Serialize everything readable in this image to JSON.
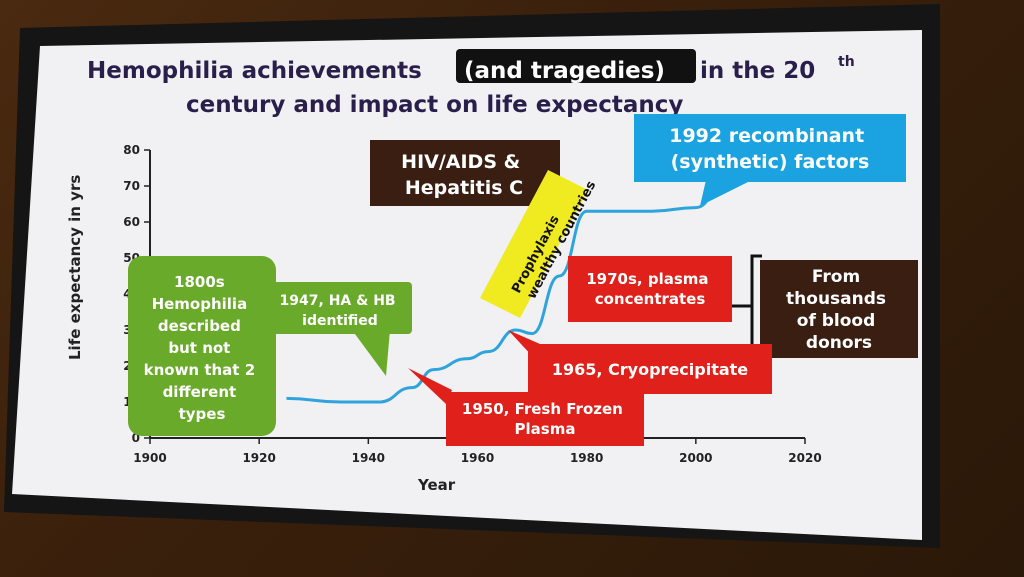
{
  "slide": {
    "title_part1": "Hemophilia achievements",
    "title_highlight": "(and tragedies)",
    "title_part2": "in the 20",
    "title_sup": "th",
    "title_line2": "century and impact on life expectancy"
  },
  "chart_data": {
    "type": "line",
    "xlabel": "Year",
    "ylabel": "Life expectancy in yrs",
    "xlim": [
      1900,
      2020
    ],
    "ylim": [
      0,
      80
    ],
    "xticks": [
      1900,
      1920,
      1940,
      1960,
      1980,
      2000,
      2020
    ],
    "yticks": [
      0,
      10,
      20,
      30,
      40,
      50,
      60,
      70,
      80
    ],
    "grid": false,
    "series": [
      {
        "color": "#2fa3dc",
        "x": [
          1925,
          1935,
          1942,
          1948,
          1952,
          1958,
          1962,
          1967,
          1970,
          1975,
          1980,
          1985,
          1992,
          2000,
          2005
        ],
        "y": [
          11,
          10,
          10,
          14,
          19,
          22,
          24,
          30,
          29,
          45,
          63,
          63,
          63,
          64,
          70
        ]
      }
    ]
  },
  "callouts": {
    "hemophilia_1800s": "1800s Hemophilia described but not known that 2 different types",
    "ha_hb_1947": "1947, HA & HB identified",
    "hiv": "HIV/AIDS & Hepatitis C",
    "prophylaxis": "Prophylaxis wealthy countries",
    "recombinant_1992": "1992 recombinant (synthetic) factors",
    "plasma_1970s": "1970s, plasma concentrates",
    "blood_donors": "From thousands of blood donors",
    "cryo_1965": "1965, Cryoprecipitate",
    "ffp_1950": "1950, Fresh Frozen Plasma"
  },
  "colors": {
    "green": "#6aaa2a",
    "red": "#e0201a",
    "blue": "#1aa3e0",
    "dark_brown": "#3a1e12",
    "yellow": "#f0ea20",
    "line": "#2fa3dc"
  }
}
